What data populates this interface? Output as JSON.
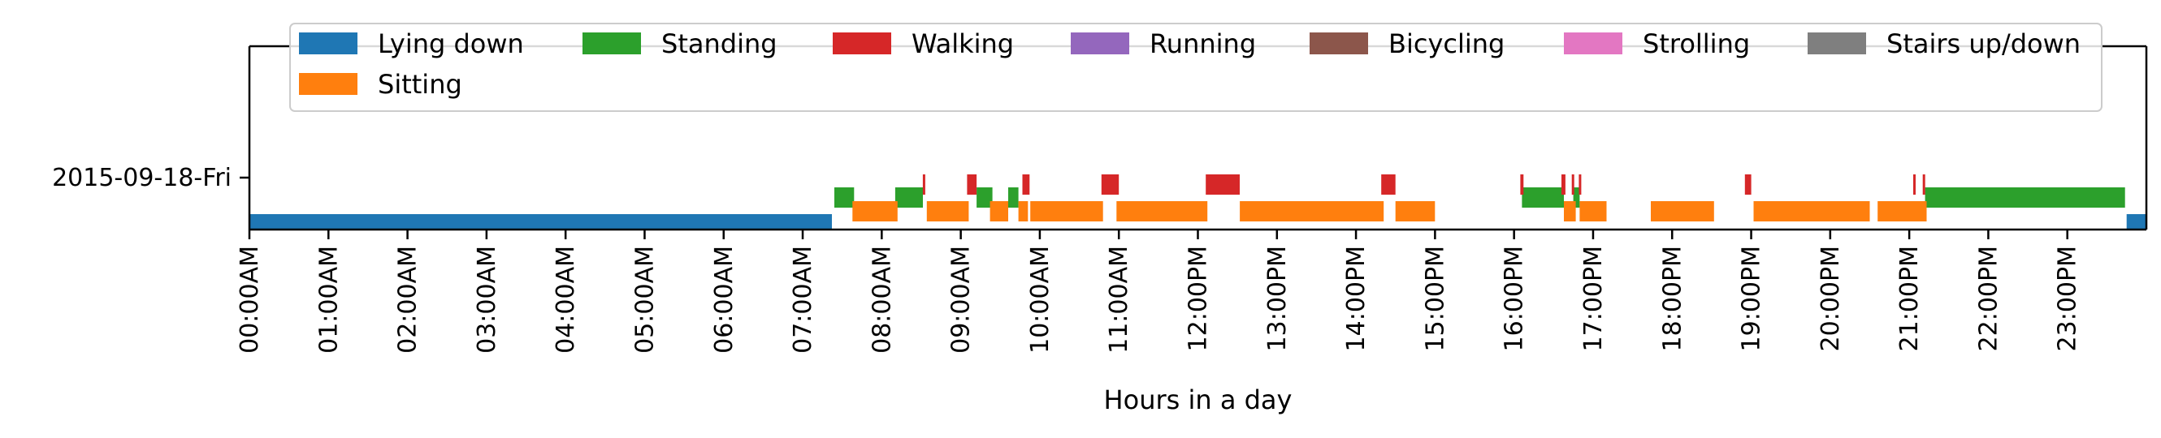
{
  "chart_data": {
    "type": "timeline",
    "xlabel": "Hours in a day",
    "ylabel": "",
    "x_unit": "hours",
    "xlim": [
      0,
      24
    ],
    "x_ticks": [
      {
        "value": 0,
        "label": "00:00AM"
      },
      {
        "value": 1,
        "label": "01:00AM"
      },
      {
        "value": 2,
        "label": "02:00AM"
      },
      {
        "value": 3,
        "label": "03:00AM"
      },
      {
        "value": 4,
        "label": "04:00AM"
      },
      {
        "value": 5,
        "label": "05:00AM"
      },
      {
        "value": 6,
        "label": "06:00AM"
      },
      {
        "value": 7,
        "label": "07:00AM"
      },
      {
        "value": 8,
        "label": "08:00AM"
      },
      {
        "value": 9,
        "label": "09:00AM"
      },
      {
        "value": 10,
        "label": "10:00AM"
      },
      {
        "value": 11,
        "label": "11:00AM"
      },
      {
        "value": 12,
        "label": "12:00PM"
      },
      {
        "value": 13,
        "label": "13:00PM"
      },
      {
        "value": 14,
        "label": "14:00PM"
      },
      {
        "value": 15,
        "label": "15:00PM"
      },
      {
        "value": 16,
        "label": "16:00PM"
      },
      {
        "value": 17,
        "label": "17:00PM"
      },
      {
        "value": 18,
        "label": "18:00PM"
      },
      {
        "value": 19,
        "label": "19:00PM"
      },
      {
        "value": 20,
        "label": "20:00PM"
      },
      {
        "value": 21,
        "label": "21:00PM"
      },
      {
        "value": 22,
        "label": "22:00PM"
      },
      {
        "value": 23,
        "label": "23:00PM"
      }
    ],
    "y_ticks": [
      "2015-09-18-Fri"
    ],
    "legend": {
      "placement": "top-center",
      "items": [
        {
          "name": "Lying down",
          "color": "#1f77b4"
        },
        {
          "name": "Standing",
          "color": "#2ca02c"
        },
        {
          "name": "Walking",
          "color": "#d62728"
        },
        {
          "name": "Running",
          "color": "#9467bd"
        },
        {
          "name": "Bicycling",
          "color": "#8c564b"
        },
        {
          "name": "Strolling",
          "color": "#e377c2"
        },
        {
          "name": "Stairs up/down",
          "color": "#7f7f7f"
        },
        {
          "name": "Sitting",
          "color": "#ff7f0e"
        }
      ]
    },
    "series": [
      {
        "name": "Lying down",
        "color": "#1f77b4",
        "segments": [
          [
            0.0,
            7.37
          ],
          [
            23.75,
            24.0
          ]
        ]
      },
      {
        "name": "Standing",
        "color": "#2ca02c",
        "segments": [
          [
            7.4,
            7.65
          ],
          [
            8.17,
            8.52
          ],
          [
            9.2,
            9.4
          ],
          [
            9.6,
            9.73
          ],
          [
            16.1,
            16.63
          ],
          [
            16.75,
            16.83
          ],
          [
            21.2,
            23.73
          ]
        ]
      },
      {
        "name": "Walking",
        "color": "#d62728",
        "segments": [
          [
            8.52,
            8.55
          ],
          [
            9.08,
            9.2
          ],
          [
            9.78,
            9.87
          ],
          [
            10.78,
            11.0
          ],
          [
            12.1,
            12.53
          ],
          [
            14.32,
            14.5
          ],
          [
            16.08,
            16.12
          ],
          [
            16.6,
            16.65
          ],
          [
            16.73,
            16.76
          ],
          [
            16.82,
            16.85
          ],
          [
            18.92,
            19.0
          ],
          [
            21.05,
            21.08
          ],
          [
            21.17,
            21.2
          ]
        ]
      },
      {
        "name": "Running",
        "color": "#9467bd",
        "segments": []
      },
      {
        "name": "Bicycling",
        "color": "#8c564b",
        "segments": []
      },
      {
        "name": "Strolling",
        "color": "#e377c2",
        "segments": []
      },
      {
        "name": "Stairs up/down",
        "color": "#7f7f7f",
        "segments": []
      },
      {
        "name": "Sitting",
        "color": "#ff7f0e",
        "segments": [
          [
            7.63,
            8.2
          ],
          [
            8.57,
            9.1
          ],
          [
            9.37,
            9.6
          ],
          [
            9.73,
            9.85
          ],
          [
            9.88,
            10.8
          ],
          [
            10.97,
            12.12
          ],
          [
            12.53,
            14.35
          ],
          [
            14.5,
            15.0
          ],
          [
            16.63,
            16.78
          ],
          [
            16.83,
            17.17
          ],
          [
            17.73,
            18.53
          ],
          [
            19.03,
            20.5
          ],
          [
            20.6,
            21.22
          ]
        ]
      }
    ]
  }
}
